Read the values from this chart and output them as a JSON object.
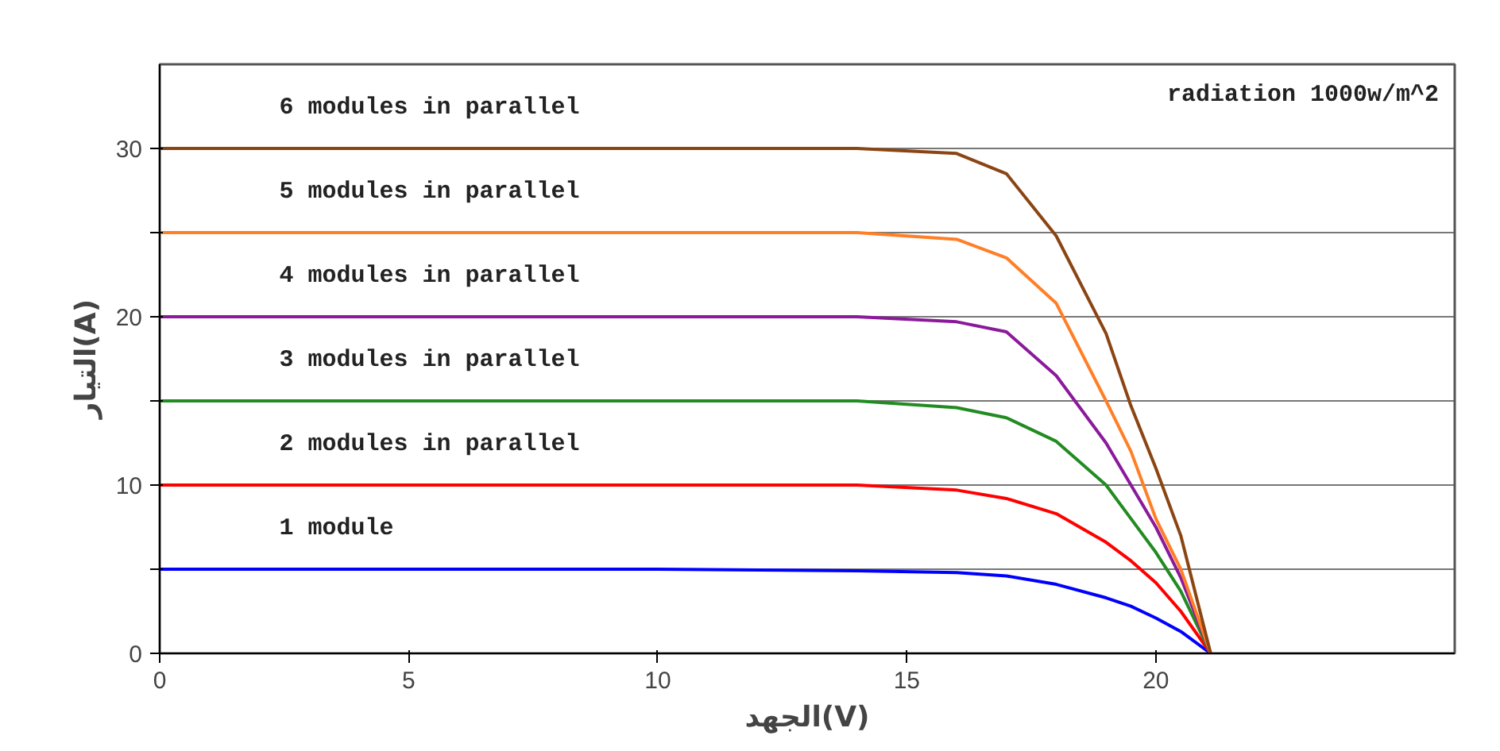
{
  "chart_data": {
    "type": "line",
    "xlabel": "الجهد(V)",
    "ylabel": "التيار(A)",
    "x": [
      0,
      5,
      10,
      14,
      16,
      17,
      18,
      19,
      19.5,
      20,
      20.5,
      21.1
    ],
    "series": [
      {
        "name": "1 module",
        "color": "#0000ff",
        "values": [
          5,
          5,
          5,
          4.9,
          4.8,
          4.6,
          4.1,
          3.3,
          2.8,
          2.1,
          1.3,
          0
        ]
      },
      {
        "name": "2 modules in parallel",
        "color": "#ff0000",
        "values": [
          10,
          10,
          10,
          10,
          9.7,
          9.2,
          8.3,
          6.6,
          5.5,
          4.2,
          2.5,
          0
        ]
      },
      {
        "name": "3 modules in parallel",
        "color": "#228b22",
        "values": [
          15,
          15,
          15,
          15,
          14.6,
          14,
          12.6,
          10,
          8,
          6,
          3.7,
          0
        ]
      },
      {
        "name": "4 modules in parallel",
        "color": "#8b1a9b",
        "values": [
          20,
          20,
          20,
          20,
          19.7,
          19.1,
          16.5,
          12.5,
          10,
          7.5,
          4.5,
          0
        ]
      },
      {
        "name": "5 modules in parallel",
        "color": "#ff7f27",
        "values": [
          25,
          25,
          25,
          25,
          24.6,
          23.5,
          20.8,
          15,
          12,
          8,
          5,
          0
        ]
      },
      {
        "name": "6 modules in parallel",
        "color": "#8b4513",
        "values": [
          30,
          30,
          30,
          30,
          29.7,
          28.5,
          24.8,
          19,
          14.7,
          11,
          7,
          0
        ]
      }
    ],
    "annotations": [
      "radiation 1000w/m^2"
    ],
    "xlim": [
      0,
      26
    ],
    "ylim": [
      0,
      35
    ],
    "xticks": [
      0,
      5,
      10,
      15,
      20
    ],
    "yticks": [
      0,
      {
        "value": 5,
        "label": null
      },
      10,
      {
        "value": 15,
        "label": null
      },
      20,
      {
        "value": 25,
        "label": null
      },
      30
    ],
    "grid": "y",
    "marker": "none",
    "line_style": "solid"
  }
}
